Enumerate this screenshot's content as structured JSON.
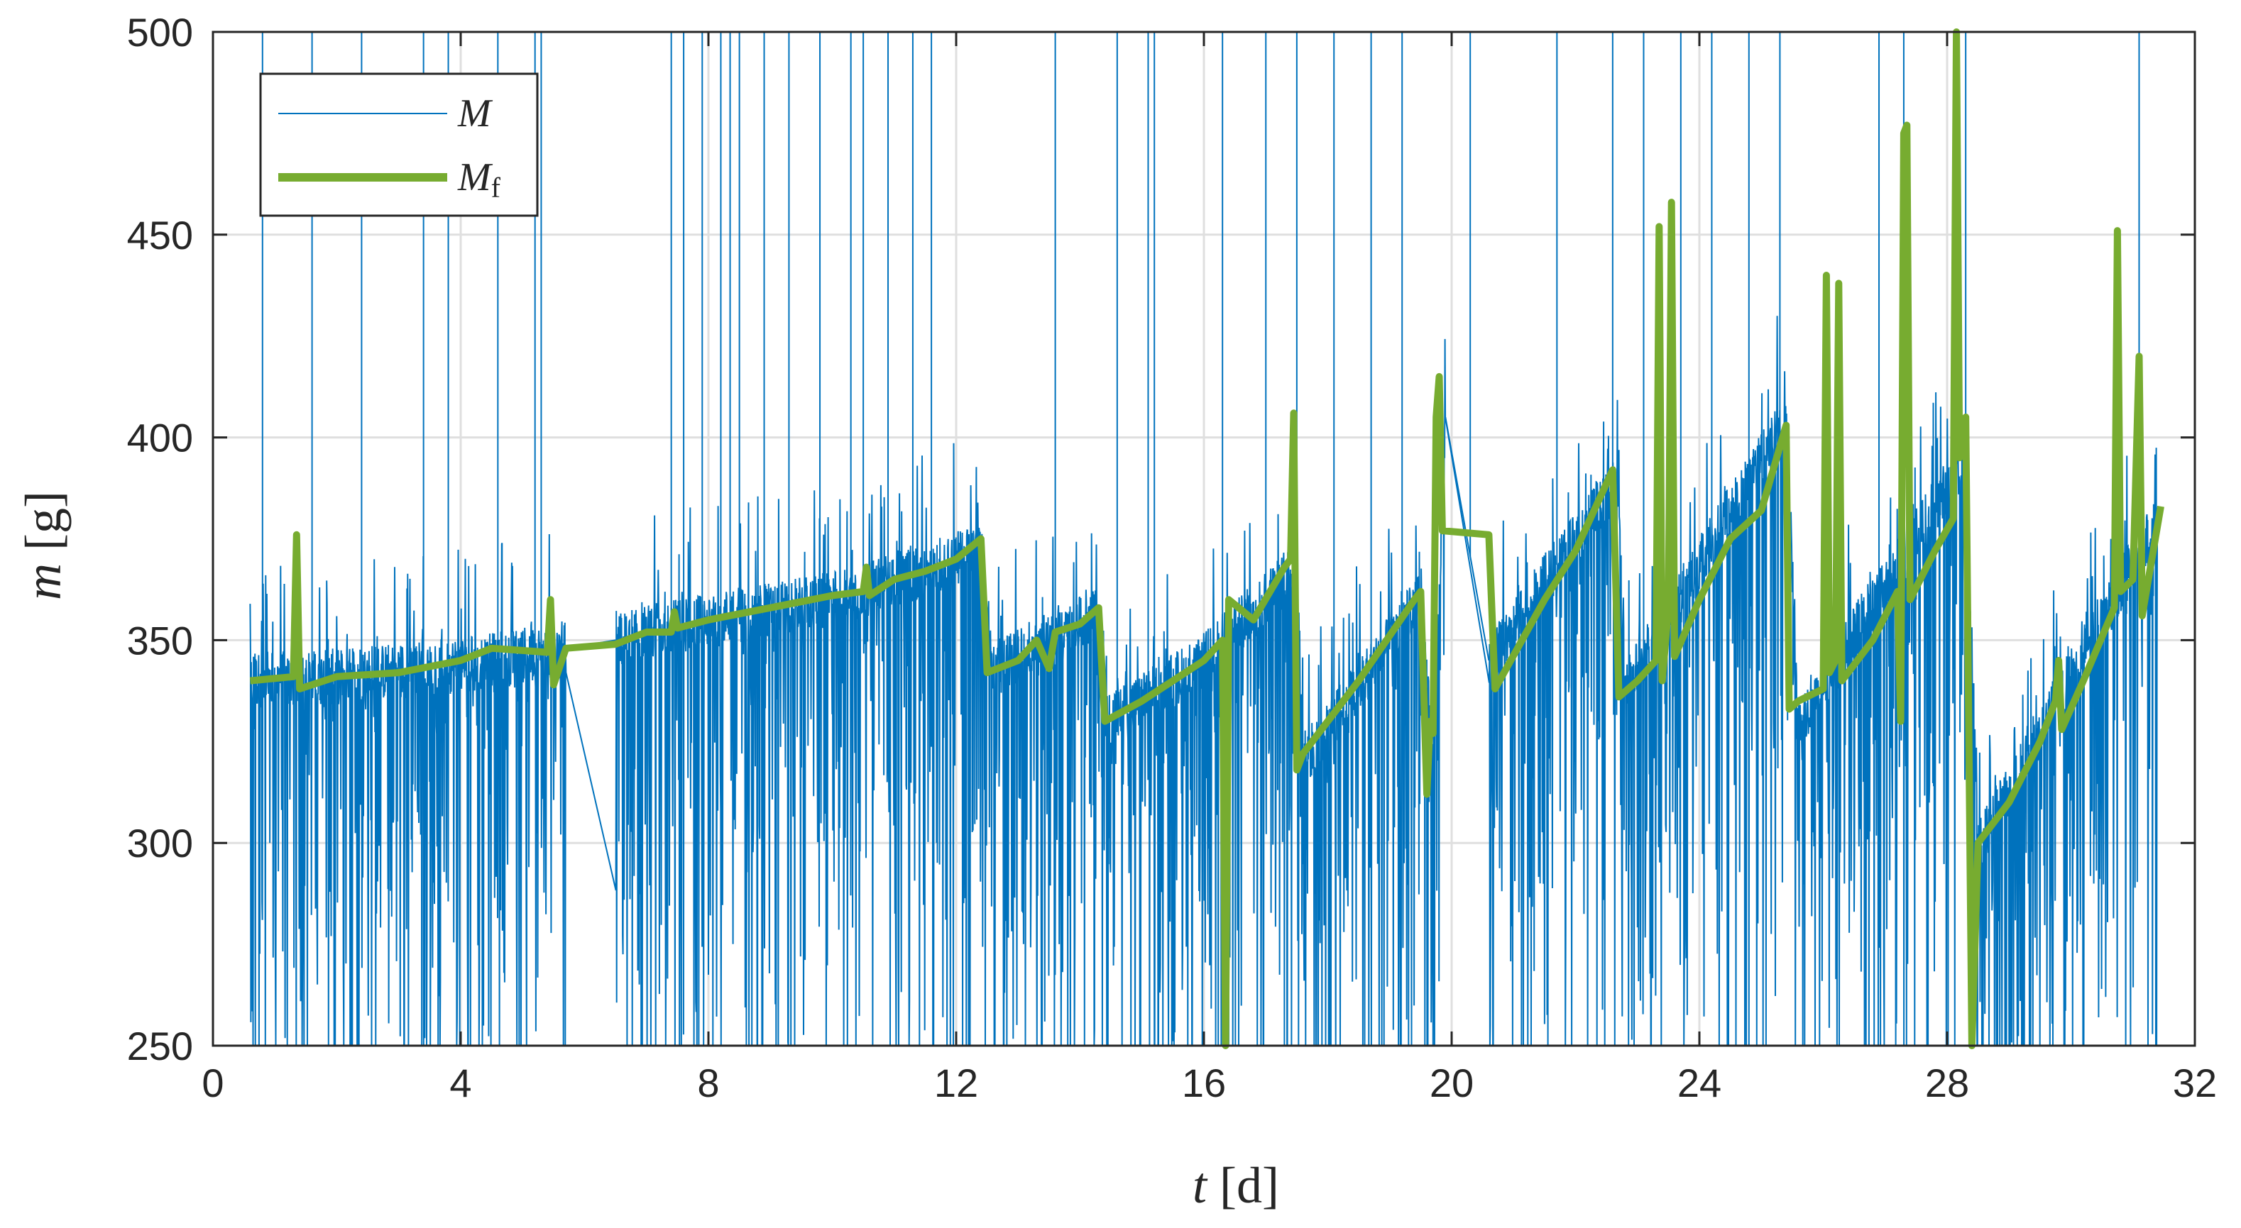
{
  "chart_data": {
    "type": "line",
    "title": "",
    "xlabel_var": "t",
    "xlabel_unit": "[d]",
    "ylabel_var": "m",
    "ylabel_unit": "[g]",
    "xlim": [
      0,
      32
    ],
    "ylim": [
      250,
      500
    ],
    "xticks": [
      0,
      4,
      8,
      12,
      16,
      20,
      24,
      28,
      32
    ],
    "yticks": [
      250,
      300,
      350,
      400,
      450,
      500
    ],
    "grid": true,
    "legend_position": "top-left",
    "colors": {
      "raw": "#0072BD",
      "filtered": "#77AC30",
      "grid": "#DFDFDF",
      "axis": "#262626"
    },
    "series": [
      {
        "name": "M",
        "legend_main": "M",
        "legend_sub": "",
        "style": "thin",
        "trend": [
          [
            0.6,
            340
          ],
          [
            2,
            341
          ],
          [
            4,
            344
          ],
          [
            5.7,
            348
          ],
          [
            6.5,
            350
          ],
          [
            8,
            355
          ],
          [
            10,
            360
          ],
          [
            12.4,
            372
          ],
          [
            12.6,
            343
          ],
          [
            13.5,
            350
          ],
          [
            14.3,
            356
          ],
          [
            14.5,
            330
          ],
          [
            16,
            345
          ],
          [
            17.5,
            368
          ],
          [
            17.6,
            320
          ],
          [
            19.5,
            360
          ],
          [
            19.7,
            318
          ],
          [
            19.9,
            405
          ],
          [
            20.6,
            345
          ],
          [
            22.7,
            390
          ],
          [
            22.8,
            338
          ],
          [
            25.4,
            405
          ],
          [
            25.6,
            330
          ],
          [
            28.3,
            395
          ],
          [
            28.5,
            300
          ],
          [
            31.4,
            380
          ]
        ],
        "gaps": [
          [
            5.7,
            6.5
          ],
          [
            19.9,
            20.6
          ]
        ],
        "tall_spikes": [
          0.8,
          1.6,
          2.4,
          3.4,
          3.8,
          4.6,
          5.2,
          5.3,
          7.4,
          7.6,
          7.9,
          8.2,
          8.35,
          8.5,
          8.9,
          9.3,
          9.8,
          10.3,
          10.5,
          10.9,
          11.3,
          11.6,
          13.6,
          14.6,
          15.1,
          15.2,
          16.3,
          17.0,
          17.5,
          18.1,
          18.7,
          19.2,
          20.3,
          21.7,
          22.6,
          23.1,
          23.7,
          24.2,
          24.8,
          25.3,
          26.9,
          27.3,
          28.3,
          31.1
        ]
      },
      {
        "name": "M_f",
        "legend_main": "M",
        "legend_sub": "f",
        "style": "thick",
        "points": [
          [
            0.6,
            340
          ],
          [
            1.3,
            341
          ],
          [
            1.35,
            376
          ],
          [
            1.4,
            338
          ],
          [
            2,
            341
          ],
          [
            3,
            342
          ],
          [
            4,
            345
          ],
          [
            4.5,
            348
          ],
          [
            5.4,
            347
          ],
          [
            5.45,
            360
          ],
          [
            5.5,
            339
          ],
          [
            5.7,
            348
          ],
          [
            6.5,
            349
          ],
          [
            7,
            352
          ],
          [
            7.4,
            352
          ],
          [
            7.45,
            357
          ],
          [
            7.5,
            353
          ],
          [
            8,
            355
          ],
          [
            9,
            358
          ],
          [
            10,
            361
          ],
          [
            10.5,
            362
          ],
          [
            10.55,
            368
          ],
          [
            10.6,
            361
          ],
          [
            11,
            365
          ],
          [
            11.5,
            367
          ],
          [
            12,
            370
          ],
          [
            12.4,
            375
          ],
          [
            12.5,
            342
          ],
          [
            13,
            345
          ],
          [
            13.3,
            350
          ],
          [
            13.5,
            343
          ],
          [
            13.6,
            352
          ],
          [
            14,
            354
          ],
          [
            14.3,
            358
          ],
          [
            14.4,
            330
          ],
          [
            15,
            335
          ],
          [
            15.5,
            340
          ],
          [
            16,
            345
          ],
          [
            16.3,
            350
          ],
          [
            16.35,
            250
          ],
          [
            16.4,
            360
          ],
          [
            16.8,
            355
          ],
          [
            17.3,
            368
          ],
          [
            17.4,
            370
          ],
          [
            17.45,
            406
          ],
          [
            17.5,
            318
          ],
          [
            17.6,
            322
          ],
          [
            18.5,
            340
          ],
          [
            19.4,
            360
          ],
          [
            19.5,
            362
          ],
          [
            19.6,
            312
          ],
          [
            19.65,
            330
          ],
          [
            19.7,
            327
          ],
          [
            19.75,
            405
          ],
          [
            19.8,
            415
          ],
          [
            19.85,
            377
          ],
          [
            20.6,
            376
          ],
          [
            20.7,
            338
          ],
          [
            21.5,
            360
          ],
          [
            22,
            372
          ],
          [
            22.6,
            392
          ],
          [
            22.7,
            336
          ],
          [
            23,
            340
          ],
          [
            23.3,
            345
          ],
          [
            23.35,
            452
          ],
          [
            23.4,
            340
          ],
          [
            23.5,
            358
          ],
          [
            23.55,
            458
          ],
          [
            23.6,
            346
          ],
          [
            24,
            360
          ],
          [
            24.5,
            375
          ],
          [
            25,
            382
          ],
          [
            25.4,
            403
          ],
          [
            25.45,
            333
          ],
          [
            25.6,
            335
          ],
          [
            26,
            338
          ],
          [
            26.05,
            440
          ],
          [
            26.1,
            342
          ],
          [
            26.2,
            345
          ],
          [
            26.25,
            438
          ],
          [
            26.3,
            340
          ],
          [
            26.8,
            350
          ],
          [
            27.2,
            362
          ],
          [
            27.25,
            330
          ],
          [
            27.3,
            475
          ],
          [
            27.35,
            477
          ],
          [
            27.4,
            360
          ],
          [
            27.8,
            372
          ],
          [
            28.1,
            380
          ],
          [
            28.15,
            500
          ],
          [
            28.2,
            395
          ],
          [
            28.3,
            405
          ],
          [
            28.4,
            250
          ],
          [
            28.5,
            300
          ],
          [
            29,
            310
          ],
          [
            29.5,
            325
          ],
          [
            29.75,
            335
          ],
          [
            29.8,
            345
          ],
          [
            29.85,
            328
          ],
          [
            30.2,
            340
          ],
          [
            30.7,
            358
          ],
          [
            30.75,
            451
          ],
          [
            30.8,
            362
          ],
          [
            31,
            365
          ],
          [
            31.1,
            420
          ],
          [
            31.15,
            356
          ],
          [
            31.45,
            383
          ]
        ]
      }
    ]
  }
}
